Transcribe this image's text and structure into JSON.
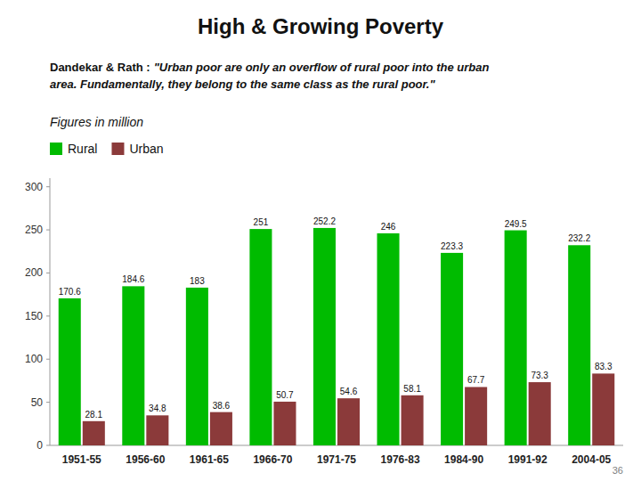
{
  "chart_data": {
    "type": "bar",
    "title": "High & Growing Poverty",
    "subtitle": "Dandekar & Rath : ",
    "annotations": [
      "\"Urban poor are only an overflow of rural poor into the urban\narea. Fundamentally, they belong to the same class as the rural poor.\"",
      "Figures in million",
      "36"
    ],
    "categories": [
      "1951-55",
      "1956-60",
      "1961-65",
      "1966-70",
      "1971-75",
      "1976-83",
      "1984-90",
      "1991-92",
      "2004-05"
    ],
    "series": [
      {
        "name": "Rural",
        "color": "#00BB00",
        "values": [
          170.6,
          184.6,
          183,
          251,
          252.2,
          246,
          223.3,
          249.5,
          232.2
        ]
      },
      {
        "name": "Urban",
        "color": "#8B3A3A",
        "values": [
          28.1,
          34.8,
          38.6,
          50.7,
          54.6,
          58.1,
          67.7,
          73.3,
          83.3
        ]
      }
    ],
    "ylim": [
      0,
      310
    ],
    "yticks": [
      0,
      50,
      100,
      150,
      200,
      250,
      300
    ],
    "grid": false,
    "legend": "upper left",
    "data_labels": true
  }
}
